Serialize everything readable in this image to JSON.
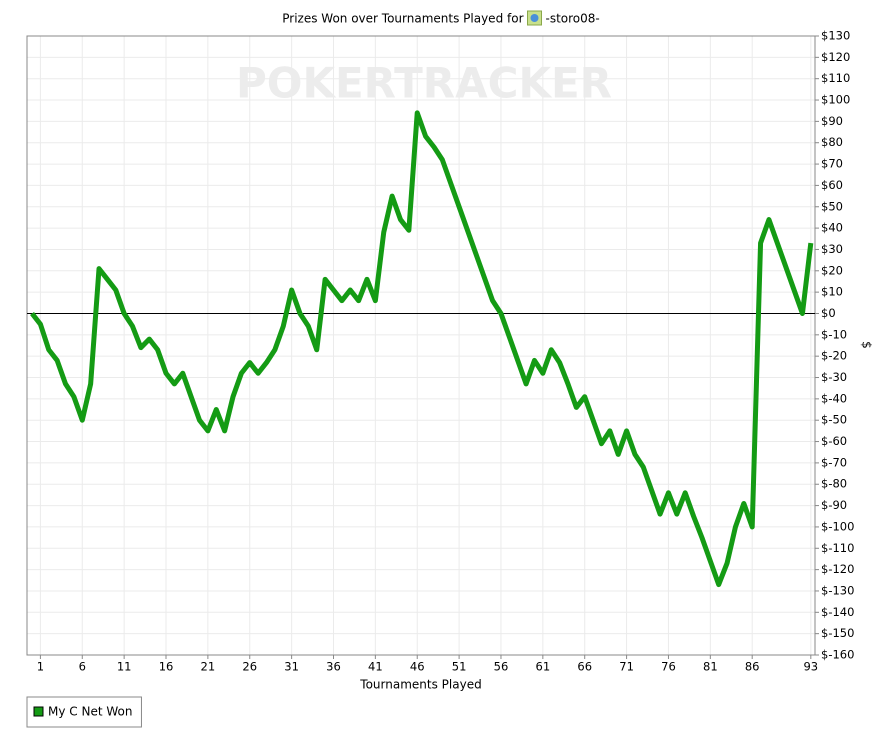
{
  "chart_data": {
    "type": "line",
    "title": "Prizes Won over Tournaments Played for",
    "player": "-storo08-",
    "watermark": "POKERTRACKER",
    "x_label": "Tournaments Played",
    "y_label": "$",
    "x": [
      0,
      1,
      2,
      3,
      4,
      5,
      6,
      7,
      8,
      9,
      10,
      11,
      12,
      13,
      14,
      15,
      16,
      17,
      18,
      19,
      20,
      21,
      22,
      23,
      24,
      25,
      26,
      27,
      28,
      29,
      30,
      31,
      32,
      33,
      34,
      35,
      36,
      37,
      38,
      39,
      40,
      41,
      42,
      43,
      44,
      45,
      46,
      47,
      48,
      49,
      50,
      51,
      52,
      53,
      54,
      55,
      56,
      57,
      58,
      59,
      60,
      61,
      62,
      63,
      64,
      65,
      66,
      67,
      68,
      69,
      70,
      71,
      72,
      73,
      74,
      75,
      76,
      77,
      78,
      79,
      80,
      81,
      82,
      83,
      84,
      85,
      86,
      87,
      88,
      89,
      90,
      91,
      92,
      93
    ],
    "series": [
      {
        "name": "My C Net Won",
        "color": "#149b14",
        "values": [
          0,
          -5,
          -17,
          -22,
          -33,
          -39,
          -50,
          -33,
          21,
          16,
          11,
          0,
          -6,
          -16,
          -12,
          -17,
          -28,
          -33,
          -28,
          -39,
          -50,
          -55,
          -45,
          -55,
          -39,
          -28,
          -23,
          -28,
          -23,
          -17,
          -6,
          11,
          0,
          -6,
          -17,
          16,
          11,
          6,
          11,
          6,
          16,
          6,
          38,
          55,
          44,
          39,
          94,
          83,
          78,
          72,
          61,
          50,
          39,
          28,
          17,
          6,
          0,
          -11,
          -22,
          -33,
          -22,
          -28,
          -17,
          -23,
          -33,
          -44,
          -39,
          -50,
          -61,
          -55,
          -66,
          -55,
          -66,
          -72,
          -83,
          -94,
          -84,
          -94,
          -84,
          -95,
          -105,
          -116,
          -127,
          -117,
          -100,
          -89,
          -100,
          33,
          44,
          33,
          22,
          11,
          0,
          33
        ]
      }
    ],
    "xlim": [
      -0.6,
      93.5
    ],
    "ylim": [
      -160,
      130
    ],
    "xticks": [
      1,
      6,
      11,
      16,
      21,
      26,
      31,
      36,
      41,
      46,
      51,
      56,
      61,
      66,
      71,
      76,
      81,
      86,
      93
    ],
    "yticks": [
      {
        "value": 130,
        "label": "$130"
      },
      {
        "value": 120,
        "label": "$120"
      },
      {
        "value": 110,
        "label": "$110"
      },
      {
        "value": 100,
        "label": "$100"
      },
      {
        "value": 90,
        "label": "$90"
      },
      {
        "value": 80,
        "label": "$80"
      },
      {
        "value": 70,
        "label": "$70"
      },
      {
        "value": 60,
        "label": "$60"
      },
      {
        "value": 50,
        "label": "$50"
      },
      {
        "value": 40,
        "label": "$40"
      },
      {
        "value": 30,
        "label": "$30"
      },
      {
        "value": 20,
        "label": "$20"
      },
      {
        "value": 10,
        "label": "$10"
      },
      {
        "value": 0,
        "label": "$0"
      },
      {
        "value": -10,
        "label": "$-10"
      },
      {
        "value": -20,
        "label": "$-20"
      },
      {
        "value": -30,
        "label": "$-30"
      },
      {
        "value": -40,
        "label": "$-40"
      },
      {
        "value": -50,
        "label": "$-50"
      },
      {
        "value": -60,
        "label": "$-60"
      },
      {
        "value": -70,
        "label": "$-70"
      },
      {
        "value": -80,
        "label": "$-80"
      },
      {
        "value": -90,
        "label": "$-90"
      },
      {
        "value": -100,
        "label": "$-100"
      },
      {
        "value": -110,
        "label": "$-110"
      },
      {
        "value": -120,
        "label": "$-120"
      },
      {
        "value": -130,
        "label": "$-130"
      },
      {
        "value": -140,
        "label": "$-140"
      },
      {
        "value": -150,
        "label": "$-150"
      },
      {
        "value": -160,
        "label": "$-160"
      }
    ],
    "grid": true,
    "zero_line": true,
    "legend": "bottom-left"
  }
}
